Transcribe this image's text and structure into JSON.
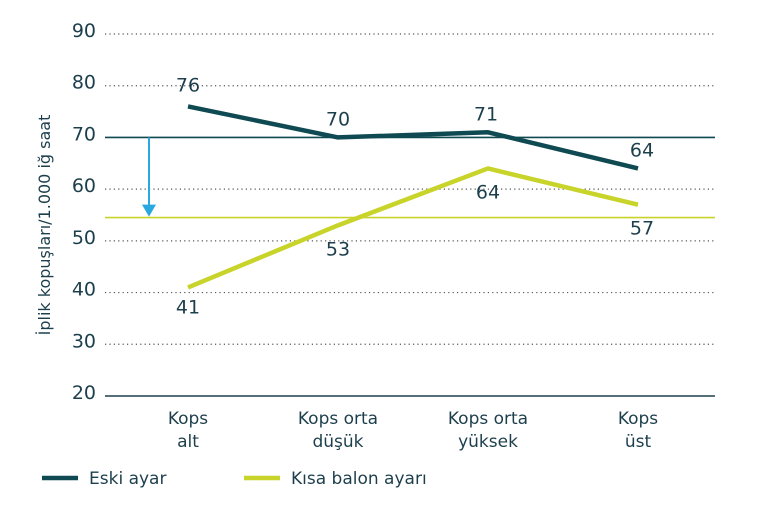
{
  "chart_data": {
    "type": "line",
    "ylabel": "İplik kopuşları/1.000 iğ saat",
    "xlabel": "",
    "ylim": [
      20,
      90
    ],
    "yticks": [
      20,
      30,
      40,
      50,
      60,
      70,
      80,
      90
    ],
    "grid": "dotted horizontal",
    "categories": [
      [
        "Kops",
        "alt"
      ],
      [
        "Kops orta",
        "düşük"
      ],
      [
        "Kops orta",
        "yüksek"
      ],
      [
        "Kops",
        "üst"
      ]
    ],
    "series": [
      {
        "name": "Eski ayar",
        "values": [
          76,
          70,
          71,
          64
        ],
        "labels": [
          "76",
          "70",
          "71",
          "64"
        ],
        "color": "#0f4a52"
      },
      {
        "name": "Kısa balon ayarı",
        "values": [
          41,
          53,
          64,
          57
        ],
        "labels": [
          "41",
          "53",
          "64",
          "57"
        ],
        "color": "#c8d42a"
      }
    ],
    "reference_lines": [
      {
        "value": 70,
        "color": "#0f4a52"
      },
      {
        "value": 54.5,
        "color": "#c8d42a"
      }
    ],
    "arrow": {
      "from": 70,
      "to": 54.5,
      "color": "#29a8df"
    },
    "legend_position": "bottom-left"
  }
}
